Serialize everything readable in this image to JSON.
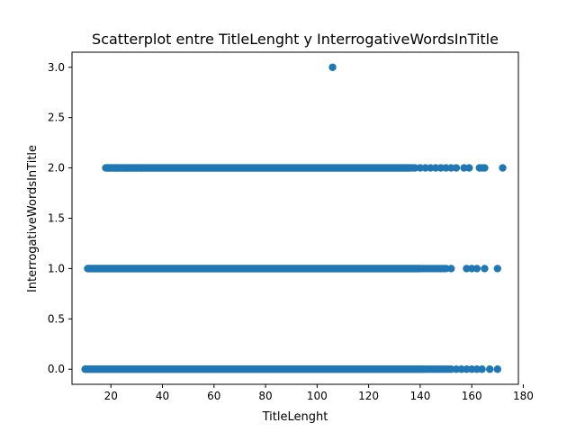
{
  "chart_data": {
    "type": "scatter",
    "title": "Scatterplot entre TitleLenght y InterrogativeWordsInTitle",
    "xlabel": "TitleLenght",
    "ylabel": "InterrogativeWordsInTitle",
    "xlim": [
      4.9,
      178.1
    ],
    "ylim": [
      -0.15,
      3.15
    ],
    "xticks": [
      20,
      40,
      60,
      80,
      100,
      120,
      140,
      160,
      180
    ],
    "yticks": [
      0.0,
      0.5,
      1.0,
      1.5,
      2.0,
      2.5,
      3.0
    ],
    "ytick_labels": [
      "0.0",
      "0.5",
      "1.0",
      "1.5",
      "2.0",
      "2.5",
      "3.0"
    ],
    "grid": false,
    "marker_color": "#1f77b4",
    "series": [
      {
        "rows": [
          {
            "y": 0,
            "dense_from": 10,
            "dense_to": 142,
            "x": [
              143,
              144,
              145,
              146,
              147,
              148,
              149,
              150,
              151,
              152,
              154,
              156,
              158,
              160,
              162,
              164,
              167,
              170
            ]
          },
          {
            "y": 1,
            "dense_from": 11,
            "dense_to": 140,
            "x": [
              141,
              142,
              143,
              144,
              145,
              146,
              147,
              148,
              149,
              150,
              152,
              158,
              160,
              162,
              165,
              170
            ]
          },
          {
            "y": 2,
            "dense_from": 18,
            "dense_to": 136,
            "x": [
              22,
              24,
              26,
              28,
              30,
              32,
              137,
              138,
              140,
              142,
              144,
              146,
              148,
              150,
              152,
              154,
              157,
              159,
              163,
              164,
              165,
              172
            ]
          },
          {
            "y": 3,
            "dense_from": null,
            "dense_to": null,
            "x": [
              106
            ]
          }
        ]
      }
    ]
  }
}
